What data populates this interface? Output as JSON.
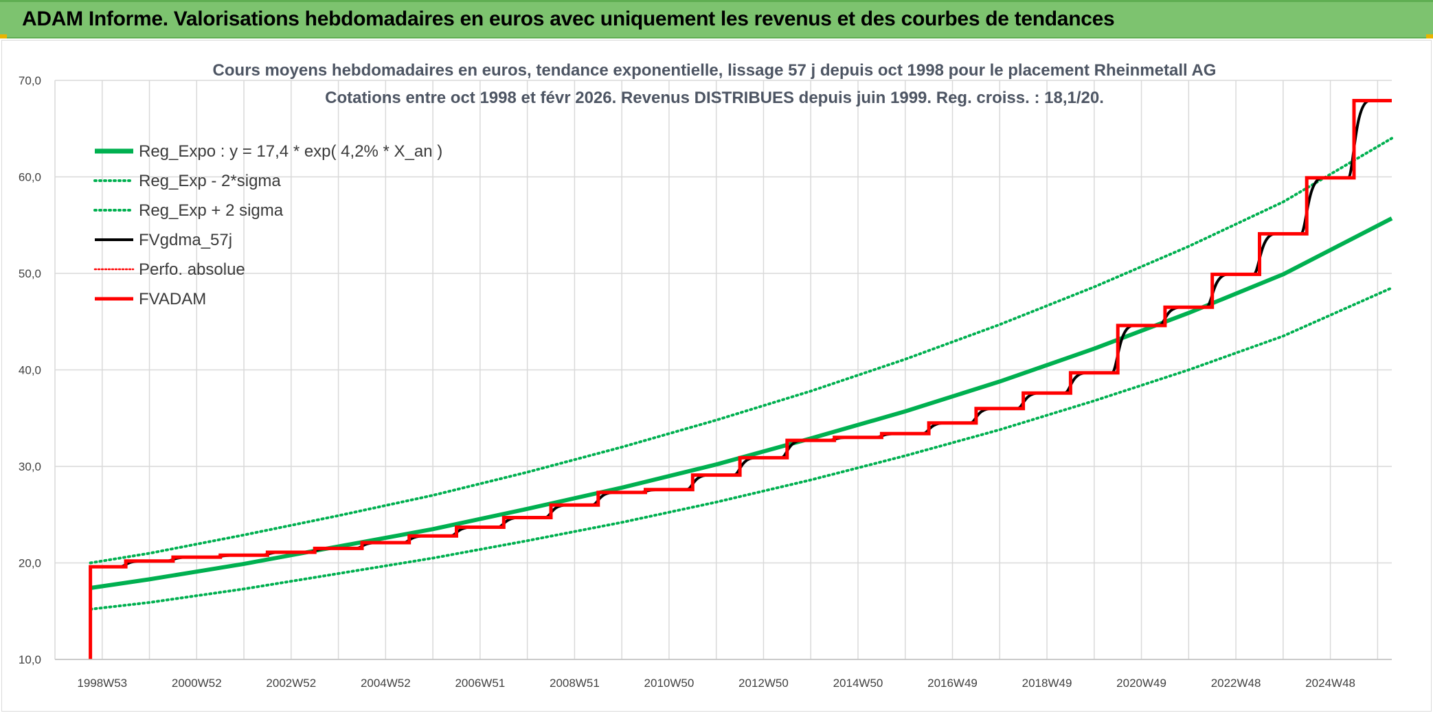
{
  "header": {
    "title": "ADAM Informe. Valorisations hebdomadaires en euros avec uniquement les revenus et des courbes de tendances"
  },
  "colors": {
    "header_bg": "#7dc36f",
    "reg_green": "#00b050",
    "red": "#ff0000",
    "black": "#000000",
    "grid": "#d9d9d9"
  },
  "chart_data": {
    "type": "line",
    "title": "Cours moyens hebdomadaires en euros, tendance exponentielle, lissage 57 j depuis oct 1998 pour le placement Rheinmetall AG",
    "subtitle": "Cotations entre oct 1998 et févr 2026. Revenus DISTRIBUES depuis juin 1999. Reg. croiss. : 18,1/20.",
    "xlabel": "",
    "ylabel": "",
    "ylim": [
      10,
      70
    ],
    "yticks": [
      "10,0",
      "20,0",
      "30,0",
      "40,0",
      "50,0",
      "60,0",
      "70,0"
    ],
    "x_tick_labels": [
      "1998W53",
      "2000W52",
      "2002W52",
      "2004W52",
      "2006W51",
      "2008W51",
      "2010W50",
      "2012W50",
      "2014W50",
      "2016W49",
      "2018W49",
      "2020W49",
      "2022W48",
      "2024W48"
    ],
    "x_tick_years": [
      1999.0,
      2001.0,
      2003.0,
      2005.0,
      2007.0,
      2009.0,
      2011.0,
      2013.0,
      2015.0,
      2017.0,
      2019.0,
      2021.0,
      2023.0,
      2025.0
    ],
    "xlim": [
      1998.0,
      2026.3
    ],
    "grid": true,
    "legend_position": "top-left",
    "series": [
      {
        "name": "Reg_Expo : y = 17,4 * exp( 4,2% *  X_an )",
        "kind": "exp",
        "color": "#00b050",
        "style": "solid",
        "x": [
          1998.75,
          2000,
          2002,
          2004,
          2006,
          2008,
          2010,
          2012,
          2014,
          2016,
          2018,
          2020,
          2022,
          2024,
          2026.3
        ],
        "values": [
          17.4,
          18.3,
          19.9,
          21.7,
          23.5,
          25.6,
          27.8,
          30.2,
          32.9,
          35.7,
          38.8,
          42.2,
          45.9,
          49.9,
          55.7
        ]
      },
      {
        "name": "Reg_Exp - 2*sigma",
        "kind": "exp",
        "color": "#00b050",
        "style": "dotted",
        "x": [
          1998.75,
          2000,
          2002,
          2004,
          2006,
          2008,
          2010,
          2012,
          2014,
          2016,
          2018,
          2020,
          2022,
          2024,
          2026.3
        ],
        "values": [
          15.2,
          15.9,
          17.3,
          18.9,
          20.5,
          22.3,
          24.2,
          26.3,
          28.6,
          31.1,
          33.8,
          36.8,
          40.0,
          43.5,
          48.5
        ]
      },
      {
        "name": "Reg_Exp + 2 sigma",
        "kind": "exp",
        "color": "#00b050",
        "style": "dotted",
        "x": [
          1998.75,
          2000,
          2002,
          2004,
          2006,
          2008,
          2010,
          2012,
          2014,
          2016,
          2018,
          2020,
          2022,
          2024,
          2026.3
        ],
        "values": [
          20.0,
          21.0,
          22.9,
          24.9,
          27.0,
          29.4,
          32.0,
          34.8,
          37.8,
          41.1,
          44.7,
          48.6,
          52.8,
          57.4,
          64.0
        ]
      },
      {
        "name": "FVgdma_57j",
        "kind": "smooth-step",
        "color": "#000000",
        "style": "solid",
        "width": 4
      },
      {
        "name": "Perfo. absolue",
        "kind": "none",
        "color": "#ff0000",
        "style": "dotted"
      },
      {
        "name": "FVADAM",
        "kind": "step",
        "color": "#ff0000",
        "style": "solid",
        "width": 5,
        "start": {
          "x": 1998.75,
          "y": 10.0
        },
        "x": [
          1998.75,
          1999.5,
          2000.5,
          2001.5,
          2002.5,
          2003.5,
          2004.5,
          2005.5,
          2006.5,
          2007.5,
          2008.5,
          2009.5,
          2010.5,
          2011.5,
          2012.5,
          2013.5,
          2014.5,
          2015.5,
          2016.5,
          2017.5,
          2018.5,
          2019.5,
          2020.5,
          2021.5,
          2022.5,
          2023.5,
          2024.5,
          2025.5
        ],
        "values": [
          19.6,
          20.2,
          20.6,
          20.8,
          21.1,
          21.5,
          22.1,
          22.8,
          23.7,
          24.7,
          26.0,
          27.3,
          27.6,
          29.1,
          30.9,
          32.7,
          33.0,
          33.4,
          34.5,
          36.0,
          37.6,
          39.7,
          44.6,
          46.5,
          49.9,
          54.1,
          59.9,
          67.9
        ],
        "end_x": 2026.3
      }
    ]
  }
}
